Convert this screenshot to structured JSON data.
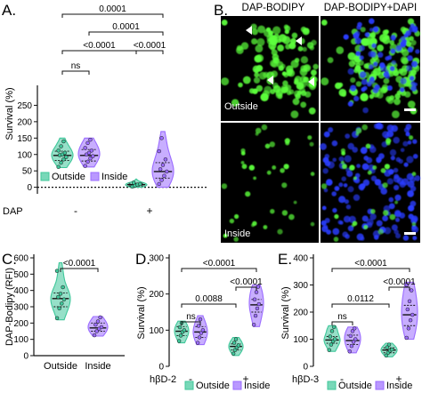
{
  "colors": {
    "outside": "#3fc79a",
    "inside": "#9b6cff",
    "micro_bg": "#000000",
    "micro_green": "#5cff3c",
    "micro_blue": "#2a3dff",
    "scalebar": "#ffffff"
  },
  "panels": {
    "A": {
      "letter": "A."
    },
    "B": {
      "letter": "B.",
      "col_titles": [
        "DAP-BODIPY",
        "DAP-BODIPY+DAPI"
      ],
      "row_labels": [
        "Outside",
        "Inside"
      ]
    },
    "C": {
      "letter": "C."
    },
    "D": {
      "letter": "D."
    },
    "E": {
      "letter": "E."
    }
  },
  "chart_data": [
    {
      "id": "A",
      "type": "violin",
      "ylabel": "Survival (%)",
      "ylim": [
        -20,
        300
      ],
      "yticks": [
        0,
        50,
        100,
        150,
        200,
        250
      ],
      "groups": [
        {
          "series": "Outside",
          "condition": "-",
          "median": 97,
          "q1": 82,
          "q3": 110,
          "min": 60,
          "max": 150,
          "points": [
            62,
            75,
            85,
            92,
            98,
            100,
            105,
            112,
            125,
            140
          ]
        },
        {
          "series": "Inside",
          "condition": "-",
          "median": 97,
          "q1": 80,
          "q3": 115,
          "min": 62,
          "max": 150,
          "points": [
            65,
            78,
            88,
            95,
            100,
            105,
            112,
            120,
            135,
            145
          ]
        },
        {
          "series": "Outside",
          "condition": "+",
          "median": 8,
          "q1": 4,
          "q3": 12,
          "min": 0,
          "max": 25,
          "points": [
            2,
            5,
            8,
            10,
            14
          ]
        },
        {
          "series": "Inside",
          "condition": "+",
          "median": 48,
          "q1": 28,
          "q3": 75,
          "min": 0,
          "max": 170,
          "points": [
            10,
            22,
            35,
            48,
            55,
            68,
            85,
            110,
            150
          ]
        }
      ],
      "xlabel_row": "DAP",
      "condition_labels": [
        "-",
        "+"
      ],
      "reference_line": 0,
      "comparisons": [
        {
          "label": "0.0001",
          "from": 0,
          "to": 3
        },
        {
          "label": "0.0001",
          "from": 1,
          "to": 3
        },
        {
          "label": "<0.0001",
          "from": 0,
          "to": 2
        },
        {
          "label": "<0.0001",
          "from": 2,
          "to": 3
        },
        {
          "label": "ns",
          "from": 0,
          "to": 1
        }
      ],
      "legend": [
        "Outside",
        "Inside"
      ],
      "legend_position": "bottom-left"
    },
    {
      "id": "C",
      "type": "violin",
      "ylabel": "DAP-Bodipy (RFI)",
      "ylim": [
        0,
        600
      ],
      "yticks": [
        0,
        100,
        200,
        300,
        400,
        500,
        600
      ],
      "categories": [
        "Outside",
        "Inside"
      ],
      "groups": [
        {
          "series": "Outside",
          "median": 350,
          "q1": 300,
          "q3": 385,
          "min": 220,
          "max": 570,
          "points": [
            230,
            290,
            320,
            345,
            360,
            380,
            420,
            520
          ]
        },
        {
          "series": "Inside",
          "median": 170,
          "q1": 150,
          "q3": 200,
          "min": 120,
          "max": 240,
          "points": [
            125,
            150,
            165,
            175,
            190,
            210,
            235
          ]
        }
      ],
      "comparisons": [
        {
          "label": "<0.0001",
          "from": 0,
          "to": 1
        }
      ]
    },
    {
      "id": "D",
      "type": "violin",
      "ylabel": "Survival (%)",
      "ylim": [
        0,
        300
      ],
      "yticks": [
        0,
        100,
        200,
        300
      ],
      "xlabel_row": "hβD-2",
      "condition_labels": [
        "-",
        "+"
      ],
      "groups": [
        {
          "series": "Outside",
          "condition": "-",
          "median": 97,
          "q1": 85,
          "q3": 110,
          "min": 65,
          "max": 125,
          "points": [
            70,
            85,
            95,
            100,
            108,
            120
          ]
        },
        {
          "series": "Inside",
          "condition": "-",
          "median": 95,
          "q1": 80,
          "q3": 110,
          "min": 60,
          "max": 140,
          "points": [
            65,
            80,
            92,
            100,
            112,
            130
          ]
        },
        {
          "series": "Outside",
          "condition": "+",
          "median": 55,
          "q1": 45,
          "q3": 62,
          "min": 30,
          "max": 80,
          "points": [
            35,
            45,
            52,
            58,
            65,
            75
          ]
        },
        {
          "series": "Inside",
          "condition": "+",
          "median": 170,
          "q1": 150,
          "q3": 185,
          "min": 110,
          "max": 225,
          "points": [
            115,
            140,
            160,
            172,
            185,
            205,
            220
          ]
        }
      ],
      "comparisons": [
        {
          "label": "<0.0001",
          "from": 0,
          "to": 3
        },
        {
          "label": "<0.0001",
          "from": 2,
          "to": 3
        },
        {
          "label": "0.0088",
          "from": 0,
          "to": 2
        },
        {
          "label": "ns",
          "from": 0,
          "to": 1
        }
      ],
      "legend": [
        "Outside",
        "Inside"
      ],
      "legend_position": "bottom"
    },
    {
      "id": "E",
      "type": "violin",
      "ylabel": "Survival (%)",
      "ylim": [
        0,
        400
      ],
      "yticks": [
        0,
        100,
        200,
        300,
        400
      ],
      "xlabel_row": "hβD-3",
      "condition_labels": [
        "-",
        "+"
      ],
      "groups": [
        {
          "series": "Outside",
          "condition": "-",
          "median": 97,
          "q1": 85,
          "q3": 110,
          "min": 55,
          "max": 150,
          "points": [
            60,
            80,
            92,
            100,
            110,
            130,
            145
          ]
        },
        {
          "series": "Inside",
          "condition": "-",
          "median": 95,
          "q1": 80,
          "q3": 115,
          "min": 50,
          "max": 145,
          "points": [
            55,
            75,
            90,
            100,
            112,
            130,
            140
          ]
        },
        {
          "series": "Outside",
          "condition": "+",
          "median": 60,
          "q1": 50,
          "q3": 68,
          "min": 35,
          "max": 85,
          "points": [
            40,
            50,
            58,
            62,
            70,
            80
          ]
        },
        {
          "series": "Inside",
          "condition": "+",
          "median": 190,
          "q1": 150,
          "q3": 225,
          "min": 100,
          "max": 310,
          "points": [
            105,
            140,
            170,
            190,
            210,
            240,
            280,
            300
          ]
        }
      ],
      "comparisons": [
        {
          "label": "<0.0001",
          "from": 0,
          "to": 3
        },
        {
          "label": "<0.0001",
          "from": 2,
          "to": 3
        },
        {
          "label": "0.0112",
          "from": 0,
          "to": 2
        },
        {
          "label": "ns",
          "from": 0,
          "to": 1
        }
      ],
      "legend": [
        "Outside",
        "Inside"
      ],
      "legend_position": "bottom"
    }
  ]
}
